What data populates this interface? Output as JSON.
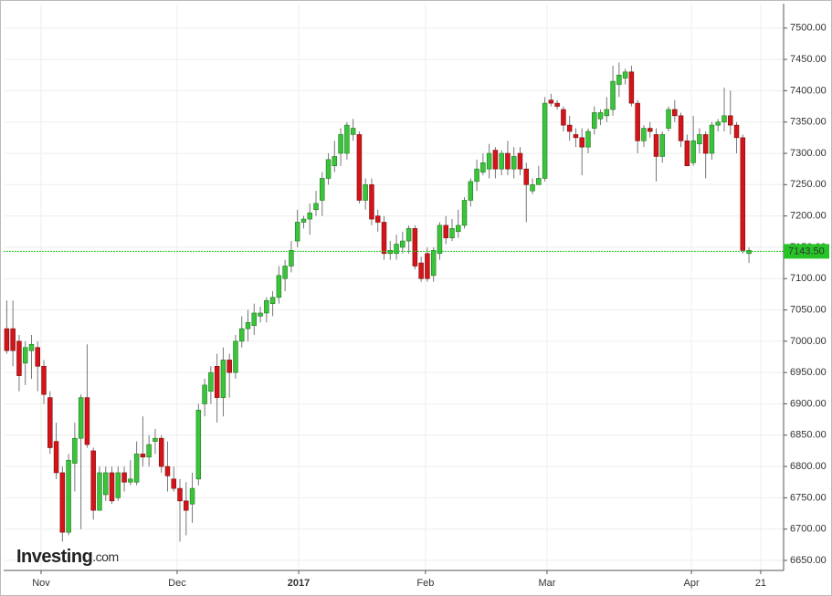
{
  "chart_data": {
    "type": "candlestick",
    "logo": {
      "name": "Investing",
      "suffix": ".com"
    },
    "xlim": [
      -0.5,
      125.6
    ],
    "xticks": [
      {
        "value": 5.55,
        "label": "Nov"
      },
      {
        "value": 27.55,
        "label": "Dec"
      },
      {
        "value": 47.2,
        "label": "2017"
      },
      {
        "value": 67.7,
        "label": "Feb"
      },
      {
        "value": 87.35,
        "label": "Mar"
      },
      {
        "value": 110.7,
        "label": "Apr"
      },
      {
        "value": 121.9,
        "label": "21"
      }
    ],
    "ylim": [
      6634,
      7539
    ],
    "yticks": [
      {
        "value": 6650,
        "label": "6650.00"
      },
      {
        "value": 6700,
        "label": "6700.00"
      },
      {
        "value": 6750,
        "label": "6750.00"
      },
      {
        "value": 6800,
        "label": "6800.00"
      },
      {
        "value": 6850,
        "label": "6850.00"
      },
      {
        "value": 6900,
        "label": "6900.00"
      },
      {
        "value": 6950,
        "label": "6950.00"
      },
      {
        "value": 7000,
        "label": "7000.00"
      },
      {
        "value": 7050,
        "label": "7050.00"
      },
      {
        "value": 7100,
        "label": "7100.00"
      },
      {
        "value": 7150,
        "label": "7150.00"
      },
      {
        "value": 7200,
        "label": "7200.00"
      },
      {
        "value": 7250,
        "label": "7250.00"
      },
      {
        "value": 7300,
        "label": "7300.00"
      },
      {
        "value": 7350,
        "label": "7350.00"
      },
      {
        "value": 7400,
        "label": "7400.00"
      },
      {
        "value": 7450,
        "label": "7450.00"
      },
      {
        "value": 7500,
        "label": "7500.00"
      }
    ],
    "grid": true,
    "up_color": "#3bc43b",
    "down_color": "#d4141a",
    "last_price": {
      "value": 7143.5,
      "label": "7143.50",
      "color": "#27c427"
    },
    "open": [
      7020,
      7020,
      7000,
      6965,
      6985,
      6990,
      6960,
      6910,
      6840,
      6790,
      6695,
      6805,
      6845,
      6910,
      6825,
      6730,
      6755,
      6790,
      6750,
      6790,
      6775,
      6775,
      6820,
      6815,
      6840,
      6845,
      6800,
      6780,
      6765,
      6745,
      6740,
      6780,
      6900,
      6920,
      6960,
      6910,
      6970,
      6950,
      7000,
      7020,
      7025,
      7040,
      7045,
      7060,
      7070,
      7100,
      7120,
      7160,
      7190,
      7195,
      7210,
      7225,
      7260,
      7280,
      7300,
      7300,
      7330,
      7330,
      7225,
      7250,
      7200,
      7190,
      7140,
      7140,
      7150,
      7160,
      7180,
      7125,
      7140,
      7105,
      7140,
      7185,
      7165,
      7175,
      7185,
      7225,
      7255,
      7270,
      7275,
      7305,
      7275,
      7300,
      7275,
      7300,
      7275,
      7240,
      7250,
      7260,
      7385,
      7380,
      7370,
      7345,
      7330,
      7325,
      7310,
      7340,
      7355,
      7360,
      7370,
      7410,
      7420,
      7430,
      7380,
      7320,
      7340,
      7330,
      7295,
      7340,
      7370,
      7360,
      7320,
      7285,
      7315,
      7330,
      7300,
      7345,
      7350,
      7360,
      7345,
      7325,
      7140
    ],
    "high": [
      7065,
      7065,
      7010,
      7000,
      7010,
      7000,
      6970,
      6920,
      6870,
      6800,
      6820,
      6870,
      6915,
      6995,
      6830,
      6800,
      6800,
      6800,
      6800,
      6800,
      6810,
      6840,
      6880,
      6850,
      6860,
      6850,
      6840,
      6800,
      6780,
      6775,
      6790,
      6900,
      6940,
      6960,
      6980,
      6990,
      6980,
      7010,
      7040,
      7050,
      7060,
      7055,
      7070,
      7080,
      7120,
      7130,
      7160,
      7210,
      7200,
      7220,
      7240,
      7270,
      7300,
      7320,
      7340,
      7350,
      7355,
      7335,
      7260,
      7260,
      7210,
      7200,
      7160,
      7170,
      7175,
      7185,
      7185,
      7135,
      7150,
      7150,
      7190,
      7200,
      7195,
      7210,
      7230,
      7260,
      7290,
      7300,
      7315,
      7310,
      7305,
      7320,
      7310,
      7310,
      7285,
      7260,
      7280,
      7390,
      7395,
      7385,
      7375,
      7360,
      7340,
      7340,
      7340,
      7375,
      7370,
      7390,
      7440,
      7445,
      7435,
      7440,
      7385,
      7345,
      7350,
      7340,
      7335,
      7375,
      7385,
      7365,
      7330,
      7360,
      7340,
      7335,
      7350,
      7355,
      7405,
      7400,
      7350,
      7330,
      7150
    ],
    "low": [
      6980,
      6960,
      6920,
      6930,
      6940,
      6920,
      6900,
      6820,
      6780,
      6680,
      6690,
      6760,
      6700,
      6830,
      6715,
      6730,
      6745,
      6740,
      6745,
      6760,
      6770,
      6770,
      6800,
      6800,
      6820,
      6790,
      6760,
      6760,
      6680,
      6690,
      6710,
      6770,
      6880,
      6900,
      6870,
      6880,
      6910,
      6940,
      6990,
      7000,
      7010,
      7030,
      7030,
      7040,
      7060,
      7080,
      7110,
      7150,
      7180,
      7170,
      7200,
      7200,
      7250,
      7270,
      7280,
      7290,
      7320,
      7220,
      7210,
      7185,
      7175,
      7130,
      7130,
      7130,
      7140,
      7140,
      7115,
      7095,
      7095,
      7095,
      7130,
      7155,
      7160,
      7165,
      7180,
      7215,
      7240,
      7265,
      7260,
      7260,
      7265,
      7265,
      7260,
      7265,
      7190,
      7235,
      7250,
      7255,
      7375,
      7370,
      7335,
      7320,
      7310,
      7265,
      7300,
      7330,
      7345,
      7350,
      7360,
      7390,
      7410,
      7375,
      7300,
      7310,
      7325,
      7255,
      7285,
      7335,
      7350,
      7310,
      7280,
      7280,
      7300,
      7260,
      7290,
      7335,
      7335,
      7330,
      7300,
      7140,
      7125
    ],
    "close": [
      6985,
      6985,
      6945,
      6990,
      6995,
      6960,
      6915,
      6830,
      6790,
      6695,
      6810,
      6845,
      6910,
      6835,
      6730,
      6790,
      6790,
      6745,
      6790,
      6775,
      6780,
      6820,
      6815,
      6835,
      6845,
      6800,
      6785,
      6765,
      6745,
      6730,
      6765,
      6890,
      6930,
      6950,
      6910,
      6970,
      6950,
      7000,
      7020,
      7030,
      7045,
      7045,
      7065,
      7070,
      7105,
      7120,
      7145,
      7190,
      7195,
      7205,
      7220,
      7260,
      7290,
      7295,
      7330,
      7345,
      7340,
      7225,
      7250,
      7195,
      7190,
      7140,
      7145,
      7155,
      7160,
      7180,
      7120,
      7100,
      7100,
      7145,
      7185,
      7165,
      7180,
      7185,
      7225,
      7255,
      7275,
      7285,
      7300,
      7275,
      7300,
      7275,
      7295,
      7275,
      7250,
      7250,
      7260,
      7380,
      7380,
      7375,
      7345,
      7335,
      7325,
      7310,
      7335,
      7365,
      7365,
      7370,
      7415,
      7425,
      7430,
      7380,
      7320,
      7340,
      7335,
      7295,
      7330,
      7370,
      7360,
      7320,
      7280,
      7320,
      7330,
      7300,
      7345,
      7350,
      7360,
      7345,
      7325,
      7145,
      7145
    ]
  }
}
